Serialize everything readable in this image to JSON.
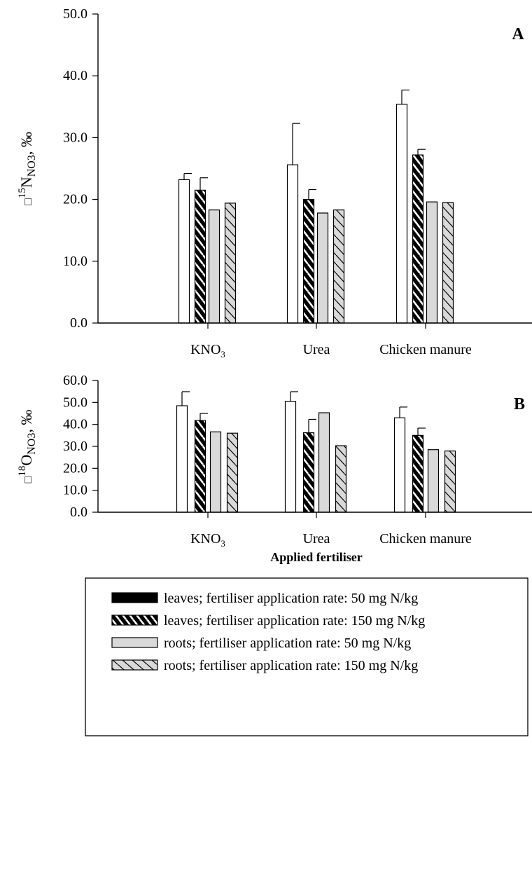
{
  "colors": {
    "background": "#ffffff",
    "ink": "#000000",
    "white_bar": "#ffffff",
    "black_bar": "#000000",
    "grey_bar": "#d9d9d9"
  },
  "legend": {
    "entries": [
      {
        "pattern": "black",
        "label": "leaves; fertiliser application rate: 50 mg N/kg"
      },
      {
        "pattern": "black-hatched",
        "label": "leaves; fertiliser application rate: 150 mg N/kg"
      },
      {
        "pattern": "grey",
        "label": "roots; fertiliser application rate: 50 mg N/kg"
      },
      {
        "pattern": "grey-hatched",
        "label": "roots; fertiliser application rate: 150 mg N/kg"
      }
    ]
  },
  "chart_data": [
    {
      "type": "bar",
      "panel_label": "A",
      "ylabel": {
        "symbol": "□",
        "sup": "15",
        "main": "N",
        "sub": "NO3",
        "suffix": ", ‰"
      },
      "ylim": [
        0,
        50
      ],
      "yticks": [
        "0.0",
        "10.0",
        "20.0",
        "30.0",
        "40.0",
        "50.0"
      ],
      "categories": [
        {
          "main": "KNO",
          "sub": "3"
        },
        {
          "main": "Urea",
          "sub": ""
        },
        {
          "main": "Chicken manure",
          "sub": ""
        }
      ],
      "series": [
        {
          "pattern": "white",
          "values": [
            23.2,
            25.6,
            35.4
          ],
          "errors": [
            1.0,
            6.7,
            2.3
          ]
        },
        {
          "pattern": "black-hatched",
          "values": [
            21.5,
            20.0,
            27.2
          ],
          "errors": [
            2.0,
            1.6,
            0.9
          ]
        },
        {
          "pattern": "grey",
          "values": [
            18.3,
            17.8,
            19.6
          ],
          "errors": [
            0,
            0,
            0
          ]
        },
        {
          "pattern": "grey-hatched",
          "values": [
            19.4,
            18.3,
            19.5
          ],
          "errors": [
            0,
            0,
            0
          ]
        }
      ]
    },
    {
      "type": "bar",
      "panel_label": "B",
      "ylabel": {
        "symbol": "□",
        "sup": "18",
        "main": "O",
        "sub": "NO3",
        "suffix": ", ‰"
      },
      "ylim": [
        0,
        60
      ],
      "yticks": [
        "0.0",
        "10.0",
        "20.0",
        "30.0",
        "40.0",
        "50.0",
        "60.0"
      ],
      "xlabel": "Applied fertiliser",
      "categories": [
        {
          "main": "KNO",
          "sub": "3"
        },
        {
          "main": "Urea",
          "sub": ""
        },
        {
          "main": "Chicken manure",
          "sub": ""
        }
      ],
      "series": [
        {
          "pattern": "white",
          "values": [
            48.5,
            50.5,
            43.0
          ],
          "errors": [
            6.4,
            4.4,
            4.9
          ]
        },
        {
          "pattern": "black-hatched",
          "values": [
            41.8,
            36.2,
            35.0
          ],
          "errors": [
            3.2,
            6.1,
            3.3
          ]
        },
        {
          "pattern": "grey",
          "values": [
            36.6,
            45.3,
            28.5
          ],
          "errors": [
            0,
            0,
            0
          ]
        },
        {
          "pattern": "grey-hatched",
          "values": [
            36.0,
            30.3,
            27.9
          ],
          "errors": [
            0,
            0,
            0
          ]
        }
      ]
    }
  ]
}
